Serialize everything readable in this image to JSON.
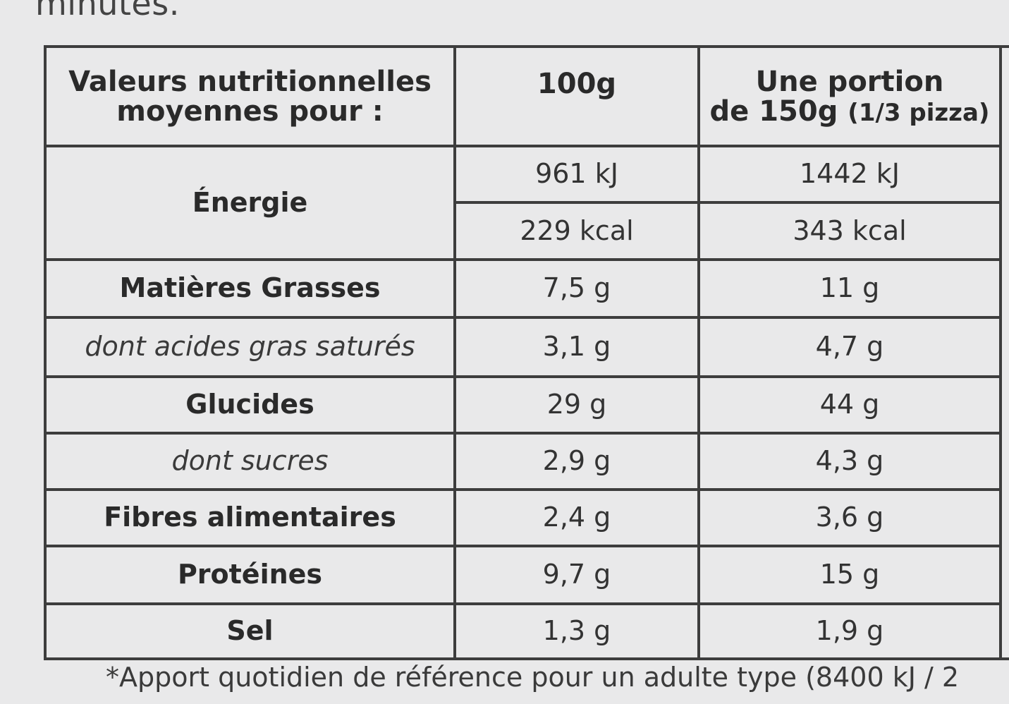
{
  "intro_text": "minutes.",
  "table": {
    "header": {
      "label_line1": "Valeurs nutritionnelles",
      "label_line2": "moyennes pour :",
      "col_100g": "100g",
      "portion_line1": "Une portion",
      "portion_line2": "de 150g",
      "portion_note": "(1/3 pizza)"
    },
    "rows": [
      {
        "label": "Énergie",
        "per100_kj": "961 kJ",
        "perPortion_kj": "1442 kJ",
        "per100_kcal": "229 kcal",
        "perPortion_kcal": "343 kcal"
      },
      {
        "label": "Matières Grasses",
        "per100": "7,5 g",
        "perPortion": "11 g"
      },
      {
        "label": "dont acides gras saturés",
        "per100": "3,1 g",
        "perPortion": "4,7 g"
      },
      {
        "label": "Glucides",
        "per100": "29 g",
        "perPortion": "44 g"
      },
      {
        "label": "dont sucres",
        "per100": "2,9 g",
        "perPortion": "4,3 g"
      },
      {
        "label": "Fibres alimentaires",
        "per100": "2,4 g",
        "perPortion": "3,6 g"
      },
      {
        "label": "Protéines",
        "per100": "9,7 g",
        "perPortion": "15 g"
      },
      {
        "label": "Sel",
        "per100": "1,3 g",
        "perPortion": "1,9 g"
      }
    ]
  },
  "footer": "*Apport quotidien de référence pour un adulte type (8400 kJ / 2"
}
